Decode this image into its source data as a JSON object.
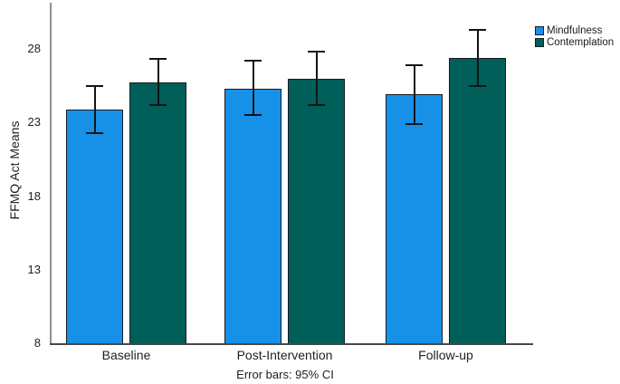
{
  "chart_data": {
    "type": "bar",
    "title": "",
    "ylabel": "FFMQ Act Means",
    "xlabel": "",
    "caption": "Error bars: 95% CI",
    "categories": [
      "Baseline",
      "Post-Intervention",
      "Follow-up"
    ],
    "y_ticks": [
      8,
      13,
      18,
      23,
      28
    ],
    "ylim": [
      8,
      31
    ],
    "grid": false,
    "legend_position": "top-right",
    "error_bars": "95% CI",
    "series": [
      {
        "name": "Mindfulness",
        "color": "#1791E8",
        "values": [
          23.9,
          25.3,
          24.9
        ],
        "ci_low": [
          22.3,
          23.5,
          22.9
        ],
        "ci_high": [
          25.5,
          27.2,
          26.9
        ]
      },
      {
        "name": "Contemplation",
        "color": "#005F58",
        "values": [
          25.7,
          26.0,
          27.4
        ],
        "ci_low": [
          24.2,
          24.2,
          25.5
        ],
        "ci_high": [
          27.3,
          27.8,
          29.3
        ]
      }
    ]
  }
}
